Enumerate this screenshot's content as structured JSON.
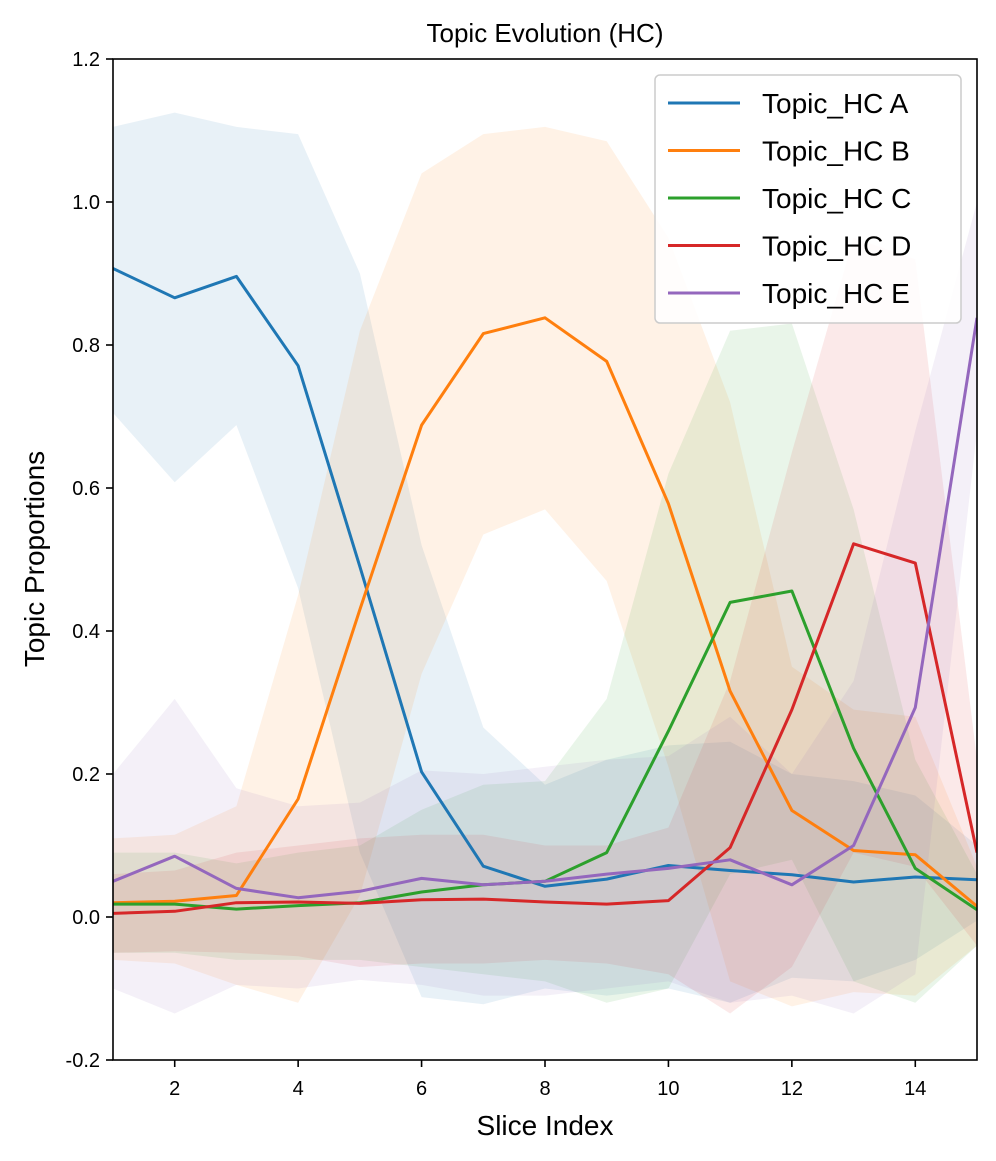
{
  "chart_data": {
    "type": "line",
    "title": "Topic Evolution (HC)",
    "xlabel": "Slice Index",
    "ylabel": "Topic Proportions",
    "xlim": [
      1,
      15
    ],
    "ylim": [
      -0.2,
      1.2
    ],
    "xticks": [
      2,
      4,
      6,
      8,
      10,
      12,
      14
    ],
    "yticks": [
      -0.2,
      0.0,
      0.2,
      0.4,
      0.6,
      0.8,
      1.0,
      1.2
    ],
    "ytick_labels": [
      "-0.2",
      "0.0",
      "0.2",
      "0.4",
      "0.6",
      "0.8",
      "1.0",
      "1.2"
    ],
    "legend_position": "top-right",
    "grid": false,
    "x": [
      1,
      2,
      3,
      4,
      5,
      6,
      7,
      8,
      9,
      10,
      11,
      12,
      13,
      14,
      15
    ],
    "series": [
      {
        "name": "Topic_HC A",
        "color": "#1f77b4",
        "values": [
          0.907,
          0.866,
          0.896,
          0.771,
          0.49,
          0.203,
          0.071,
          0.043,
          0.053,
          0.072,
          0.065,
          0.059,
          0.049,
          0.056,
          0.052
        ],
        "upper": [
          1.105,
          1.125,
          1.105,
          1.095,
          0.9,
          0.52,
          0.265,
          0.185,
          0.22,
          0.24,
          0.245,
          0.2,
          0.19,
          0.17,
          0.1
        ],
        "lower": [
          0.705,
          0.608,
          0.688,
          0.46,
          0.09,
          -0.112,
          -0.122,
          -0.1,
          -0.11,
          -0.1,
          -0.12,
          -0.085,
          -0.09,
          -0.06,
          -0.005
        ]
      },
      {
        "name": "Topic_HC B",
        "color": "#ff7f0e",
        "values": [
          0.02,
          0.022,
          0.03,
          0.165,
          0.43,
          0.688,
          0.816,
          0.838,
          0.777,
          0.578,
          0.316,
          0.149,
          0.093,
          0.087,
          0.015
        ],
        "upper": [
          0.11,
          0.115,
          0.155,
          0.45,
          0.82,
          1.04,
          1.095,
          1.105,
          1.085,
          0.95,
          0.72,
          0.35,
          0.29,
          0.28,
          0.07
        ],
        "lower": [
          -0.06,
          -0.065,
          -0.095,
          -0.12,
          0.03,
          0.34,
          0.535,
          0.57,
          0.47,
          0.21,
          -0.09,
          -0.125,
          -0.105,
          -0.11,
          -0.04
        ]
      },
      {
        "name": "Topic_HC C",
        "color": "#2ca02c",
        "values": [
          0.018,
          0.018,
          0.011,
          0.016,
          0.02,
          0.035,
          0.045,
          0.05,
          0.09,
          0.26,
          0.44,
          0.456,
          0.236,
          0.068,
          0.01
        ],
        "upper": [
          0.09,
          0.09,
          0.075,
          0.09,
          0.1,
          0.15,
          0.185,
          0.19,
          0.305,
          0.62,
          0.82,
          0.83,
          0.57,
          0.22,
          0.06
        ],
        "lower": [
          -0.05,
          -0.05,
          -0.06,
          -0.06,
          -0.06,
          -0.07,
          -0.08,
          -0.09,
          -0.12,
          -0.1,
          0.06,
          0.08,
          -0.09,
          -0.12,
          -0.04
        ]
      },
      {
        "name": "Topic_HC D",
        "color": "#d62728",
        "values": [
          0.005,
          0.008,
          0.02,
          0.021,
          0.019,
          0.024,
          0.025,
          0.021,
          0.018,
          0.023,
          0.097,
          0.29,
          0.522,
          0.495,
          0.09
        ],
        "upper": [
          0.06,
          0.065,
          0.09,
          0.1,
          0.11,
          0.115,
          0.115,
          0.1,
          0.1,
          0.125,
          0.33,
          0.65,
          0.95,
          0.92,
          0.22
        ],
        "lower": [
          -0.05,
          -0.048,
          -0.05,
          -0.055,
          -0.07,
          -0.065,
          -0.065,
          -0.06,
          -0.065,
          -0.08,
          -0.135,
          -0.07,
          0.09,
          0.07,
          -0.04
        ]
      },
      {
        "name": "Topic_HC E",
        "color": "#9467bd",
        "values": [
          0.05,
          0.085,
          0.04,
          0.027,
          0.036,
          0.054,
          0.045,
          0.05,
          0.06,
          0.068,
          0.08,
          0.045,
          0.1,
          0.293,
          0.838
        ],
        "upper": [
          0.2,
          0.305,
          0.18,
          0.155,
          0.16,
          0.205,
          0.2,
          0.21,
          0.22,
          0.225,
          0.28,
          0.2,
          0.33,
          0.68,
          1.0
        ],
        "lower": [
          -0.1,
          -0.135,
          -0.095,
          -0.1,
          -0.088,
          -0.095,
          -0.11,
          -0.11,
          -0.1,
          -0.09,
          -0.12,
          -0.11,
          -0.135,
          -0.08,
          0.68
        ]
      }
    ]
  }
}
